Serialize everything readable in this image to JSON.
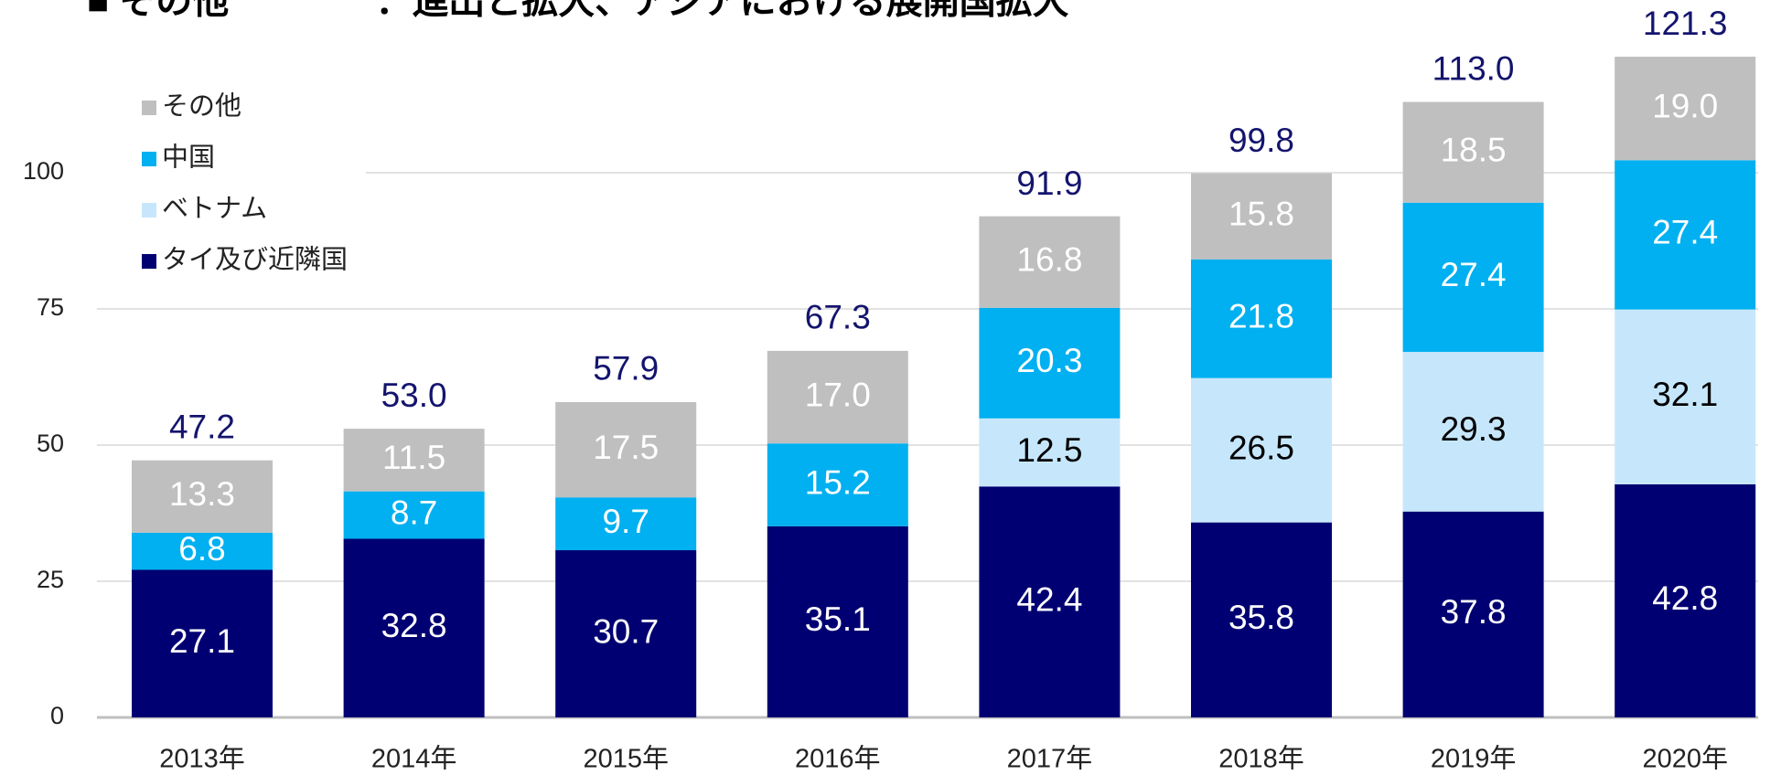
{
  "chart_data": {
    "type": "stacked_bar",
    "title": "■ その他　　　　：進出と拡大、アジアにおける展開国拡大",
    "categories": [
      "2013年",
      "2014年",
      "2015年",
      "2016年",
      "2017年",
      "2018年",
      "2019年",
      "2020年"
    ],
    "series": [
      {
        "name": "タイ及び近隣国",
        "color": "#000072",
        "label_color": "#ffffff",
        "values": [
          27.1,
          32.8,
          30.7,
          35.1,
          42.4,
          35.8,
          37.8,
          42.8
        ]
      },
      {
        "name": "ベトナム",
        "color": "#c6e7fb",
        "label_color": "#000000",
        "values": [
          null,
          null,
          null,
          null,
          12.5,
          26.5,
          29.3,
          32.1
        ]
      },
      {
        "name": "中国",
        "color": "#00b0f0",
        "label_color": "#ffffff",
        "values": [
          6.8,
          8.7,
          9.7,
          15.2,
          20.3,
          21.8,
          27.4,
          27.4
        ]
      },
      {
        "name": "その他",
        "color": "#bfbfbf",
        "label_color": "#ffffff",
        "values": [
          13.3,
          11.5,
          17.5,
          17.0,
          16.8,
          15.8,
          18.5,
          19.0
        ],
        "value_labels": [
          "13.3",
          "11.5",
          "17.5",
          "17.0",
          "16.8",
          "15.8",
          "18.5",
          "19.0"
        ]
      }
    ],
    "totals": {
      "color": "#14146e",
      "values": [
        47.2,
        53.0,
        57.9,
        67.3,
        91.9,
        99.8,
        113.0,
        121.3
      ],
      "value_labels": [
        "47.2",
        "53.0",
        "57.9",
        "67.3",
        "91.9",
        "99.8",
        "113.0",
        "121.3"
      ]
    },
    "ylim": [
      0,
      125
    ],
    "yticks": [
      0,
      25,
      50,
      75,
      100
    ],
    "grid": true,
    "legend": "top-left"
  }
}
